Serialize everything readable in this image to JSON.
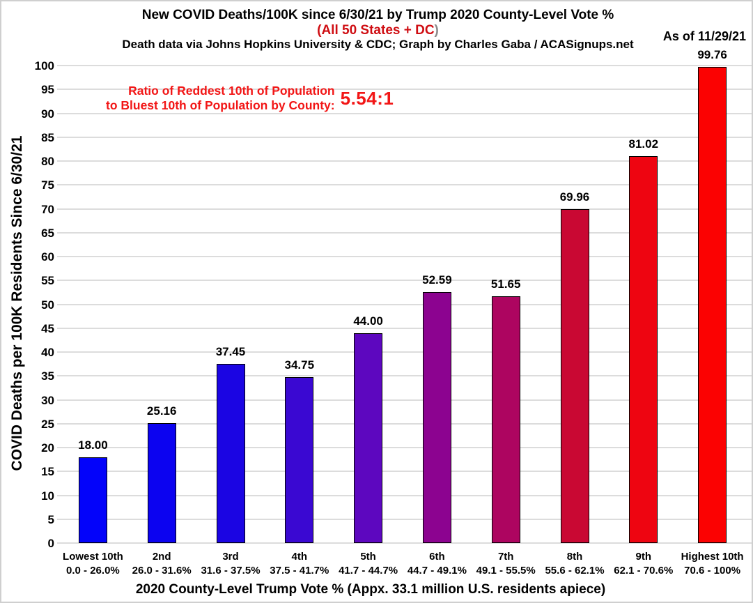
{
  "header": {
    "title": "New COVID Deaths/100K since 6/30/21 by Trump 2020 County-Level Vote %",
    "subtitle_red": "(All 50 States + DC",
    "subtitle_paren": ")",
    "credit": "Death data via Johns Hopkins University & CDC; Graph by Charles Gaba / ACASignups.net",
    "as_of": "As of 11/29/21"
  },
  "annotation": {
    "line1": "Ratio of Reddest 10th of Population",
    "line2": "to Bluest 10th of Population by County:",
    "ratio_value": "5.54:1"
  },
  "chart_data": {
    "type": "bar",
    "title": "New COVID Deaths/100K since 6/30/21 by Trump 2020 County-Level Vote %",
    "subtitle": "(All 50 States + DC)",
    "as_of": "As of 11/29/21",
    "xlabel": "2020 County-Level Trump Vote % (Appx. 33.1 million U.S. residents apiece)",
    "ylabel": "COVID Deaths per 100K Residents Since 6/30/21",
    "ylim": [
      0,
      100
    ],
    "ytick_step": 5,
    "grid": true,
    "legend": false,
    "categories": [
      "Lowest 10th",
      "2nd",
      "3rd",
      "4th",
      "5th",
      "6th",
      "7th",
      "8th",
      "9th",
      "Highest 10th"
    ],
    "ranges": [
      "0.0 - 26.0%",
      "26.0 - 31.6%",
      "31.6 - 37.5%",
      "37.5 - 41.7%",
      "41.7 - 44.7%",
      "44.7 - 49.1%",
      "49.1 - 55.5%",
      "55.6 - 62.1%",
      "62.1 - 70.6%",
      "70.6 - 100%"
    ],
    "values": [
      18.0,
      25.16,
      37.45,
      34.75,
      44.0,
      52.59,
      51.65,
      69.96,
      81.02,
      99.76
    ],
    "value_labels": [
      "18.00",
      "25.16",
      "37.45",
      "34.75",
      "44.00",
      "52.59",
      "51.65",
      "69.96",
      "81.02",
      "99.76"
    ],
    "bar_colors": [
      "#0303fa",
      "#0c03f0",
      "#1b05e3",
      "#3a08d2",
      "#5d07bf",
      "#8c0390",
      "#ad0560",
      "#c90833",
      "#ee0511",
      "#fb0202"
    ]
  },
  "colors": {
    "grid": "#dcdcdc",
    "subtitle_red": "#cf0d12",
    "subtitle_gray": "#8a8a8a",
    "annotation_red": "#f21616",
    "bar_border": "#000000",
    "frame_border": "#cfcfcf"
  }
}
